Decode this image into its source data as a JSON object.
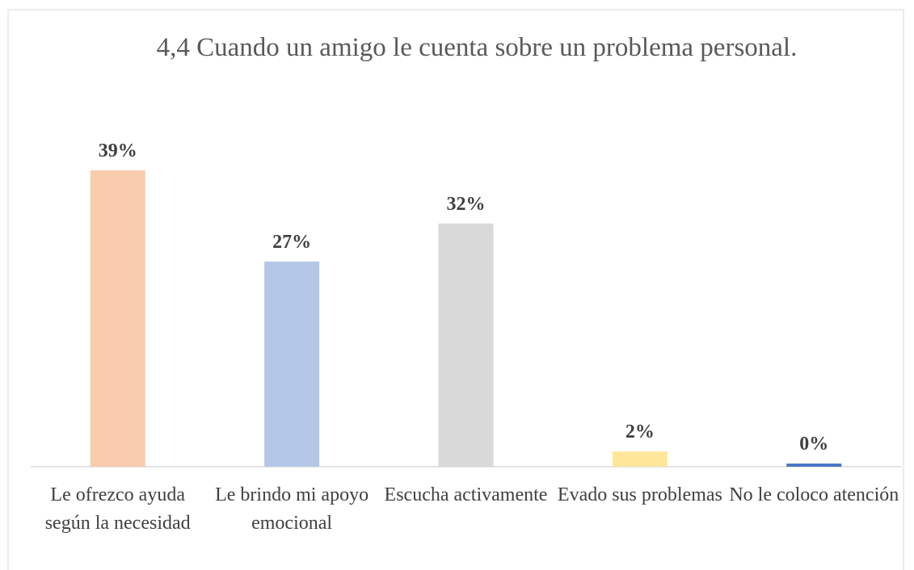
{
  "chart_data": {
    "type": "bar",
    "title": "4,4 Cuando un amigo le cuenta sobre un problema personal.",
    "categories": [
      "Le ofrezco ayuda según la necesidad",
      "Le brindo mi apoyo emocional",
      "Escucha activamente",
      "Evado sus problemas",
      "No le coloco atención"
    ],
    "values": [
      39,
      27,
      32,
      2,
      0.4
    ],
    "value_labels": [
      "39%",
      "27%",
      "32%",
      "2%",
      "0%"
    ],
    "colors": [
      "#f8cbad",
      "#b4c7e7",
      "#d9d9d9",
      "#ffe699",
      "#4472c4"
    ]
  }
}
